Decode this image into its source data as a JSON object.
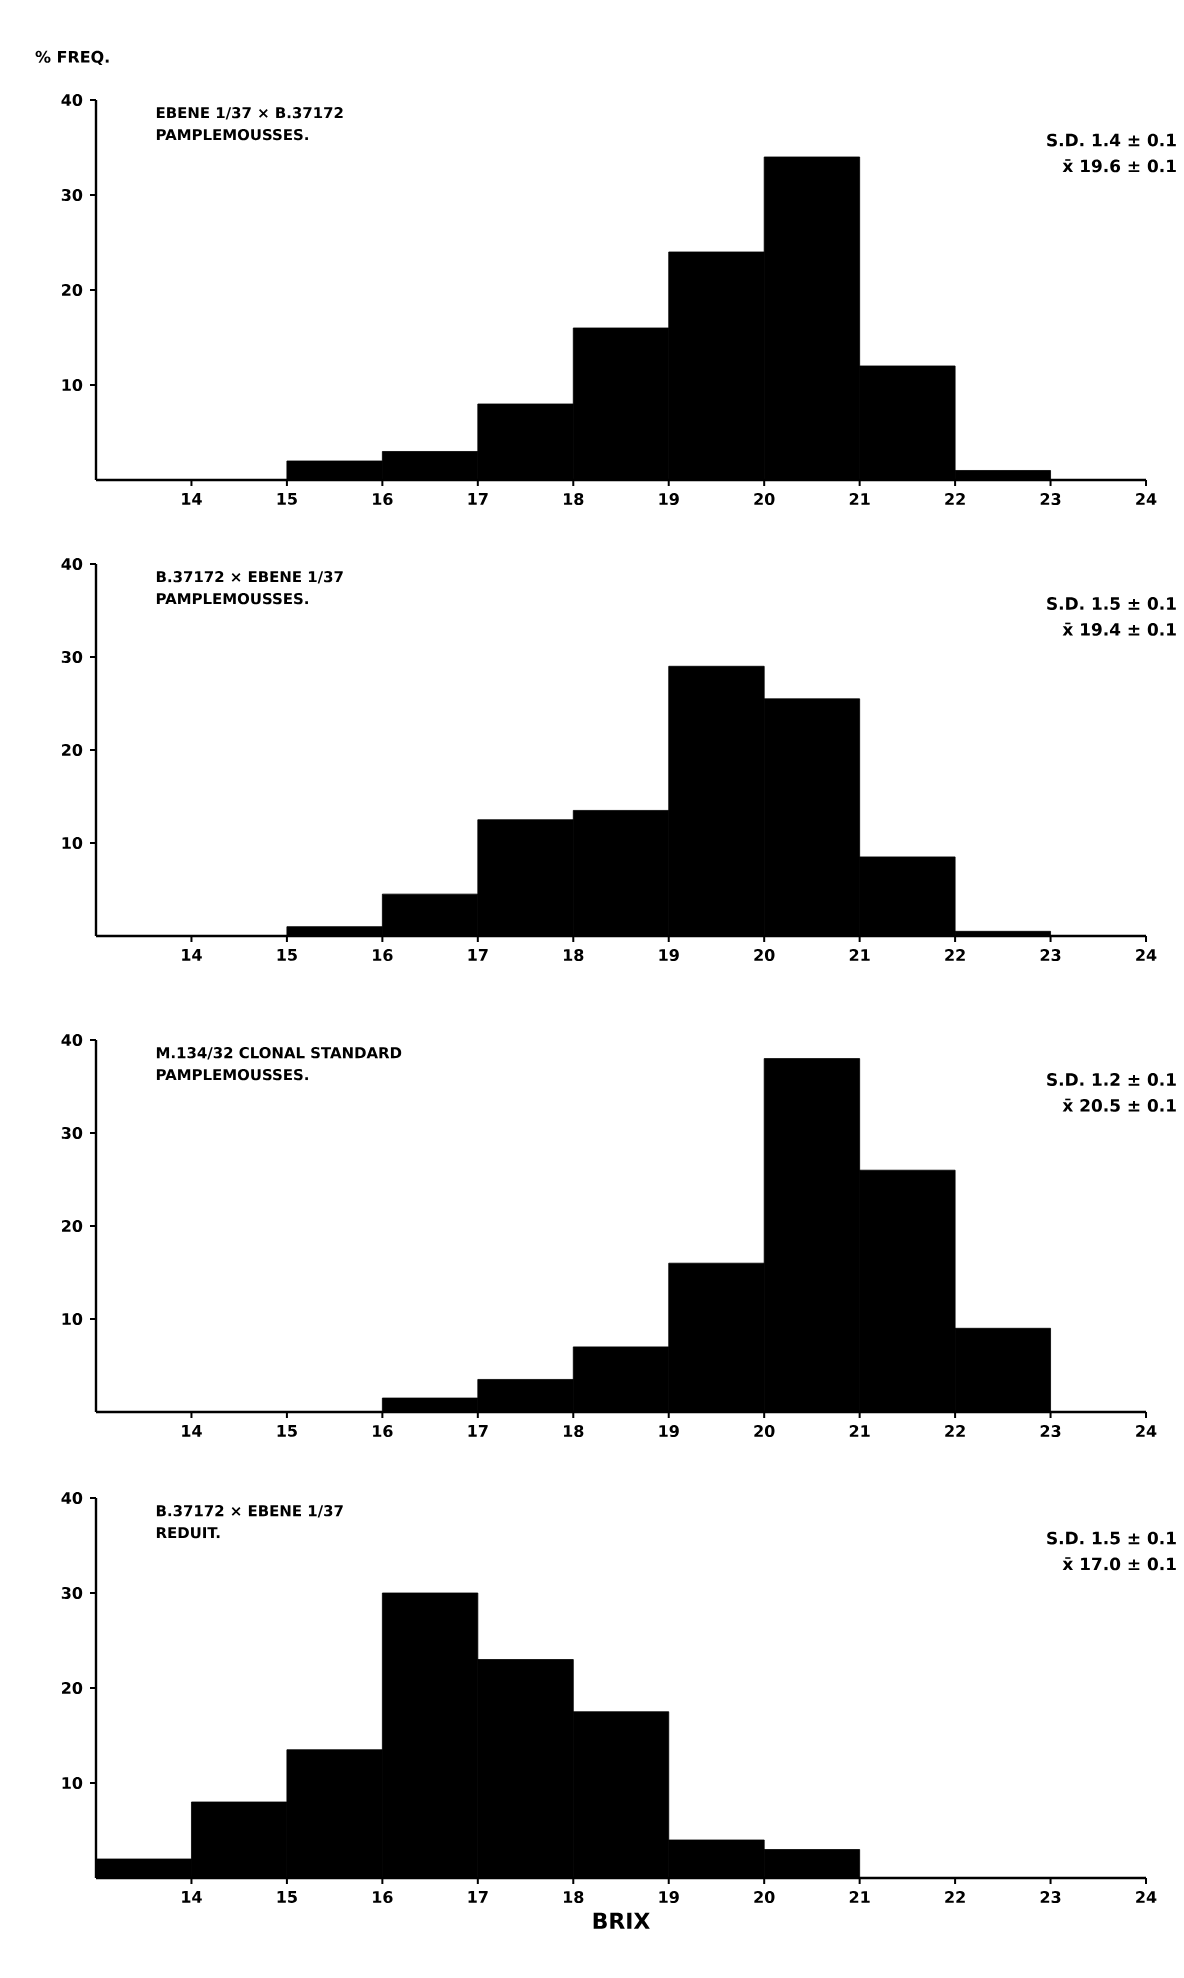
{
  "chart_data": [
    {
      "type": "histogram",
      "title": "EBENE 1/37 × B.37172",
      "subtitle": "PAMPLEMOUSSES.",
      "ylabel": "% FREQ.",
      "annotations": [
        "S.D. 1.4 ± 0.1",
        "x̄ 19.6 ± 0.1"
      ],
      "color": "#000000",
      "bins": [
        13,
        14,
        15,
        16,
        17,
        18,
        19,
        20,
        21,
        22,
        23,
        24
      ],
      "values": [
        0,
        0,
        2,
        3,
        8,
        16,
        24,
        34,
        12,
        1,
        0
      ],
      "xlim": [
        13,
        24
      ],
      "xticks": [
        14,
        15,
        16,
        17,
        18,
        19,
        20,
        21,
        22,
        23,
        24
      ],
      "ylim": [
        0,
        40
      ],
      "yticks": [
        10,
        20,
        30,
        40
      ]
    },
    {
      "type": "histogram",
      "title": "B.37172 × EBENE 1/37",
      "subtitle": "PAMPLEMOUSSES.",
      "annotations": [
        "S.D. 1.5 ± 0.1",
        "x̄ 19.4 ± 0.1"
      ],
      "color": "#000000",
      "bins": [
        13,
        14,
        15,
        16,
        17,
        18,
        19,
        20,
        21,
        22,
        23,
        24
      ],
      "values": [
        0,
        0,
        1,
        4.5,
        12.5,
        13.5,
        29,
        25.5,
        8.5,
        0.5,
        0
      ],
      "xlim": [
        13,
        24
      ],
      "xticks": [
        14,
        15,
        16,
        17,
        18,
        19,
        20,
        21,
        22,
        23,
        24
      ],
      "ylim": [
        0,
        40
      ],
      "yticks": [
        10,
        20,
        30,
        40
      ]
    },
    {
      "type": "histogram",
      "title": "M.134/32 CLONAL STANDARD",
      "subtitle": "PAMPLEMOUSSES.",
      "annotations": [
        "S.D. 1.2 ± 0.1",
        "x̄ 20.5 ± 0.1"
      ],
      "color": "#000000",
      "bins": [
        13,
        14,
        15,
        16,
        17,
        18,
        19,
        20,
        21,
        22,
        23,
        24
      ],
      "values": [
        0,
        0,
        0,
        1.5,
        3.5,
        7,
        16,
        38,
        26,
        9,
        0
      ],
      "xlim": [
        13,
        24
      ],
      "xticks": [
        14,
        15,
        16,
        17,
        18,
        19,
        20,
        21,
        22,
        23,
        24
      ],
      "ylim": [
        0,
        40
      ],
      "yticks": [
        10,
        20,
        30,
        40
      ]
    },
    {
      "type": "histogram",
      "title": "B.37172 × EBENE 1/37",
      "subtitle": "REDUIT.",
      "xlabel": "BRIX",
      "annotations": [
        "S.D. 1.5 ± 0.1",
        "x̄ 17.0 ± 0.1"
      ],
      "color": "#000000",
      "bins": [
        13,
        14,
        15,
        16,
        17,
        18,
        19,
        20,
        21,
        22,
        23,
        24
      ],
      "values": [
        2,
        8,
        13.5,
        30,
        23,
        17.5,
        4,
        3,
        0,
        0,
        0
      ],
      "xlim": [
        13,
        24
      ],
      "xticks": [
        14,
        15,
        16,
        17,
        18,
        19,
        20,
        21,
        22,
        23,
        24
      ],
      "ylim": [
        0,
        40
      ],
      "yticks": [
        10,
        20,
        30,
        40
      ]
    }
  ]
}
